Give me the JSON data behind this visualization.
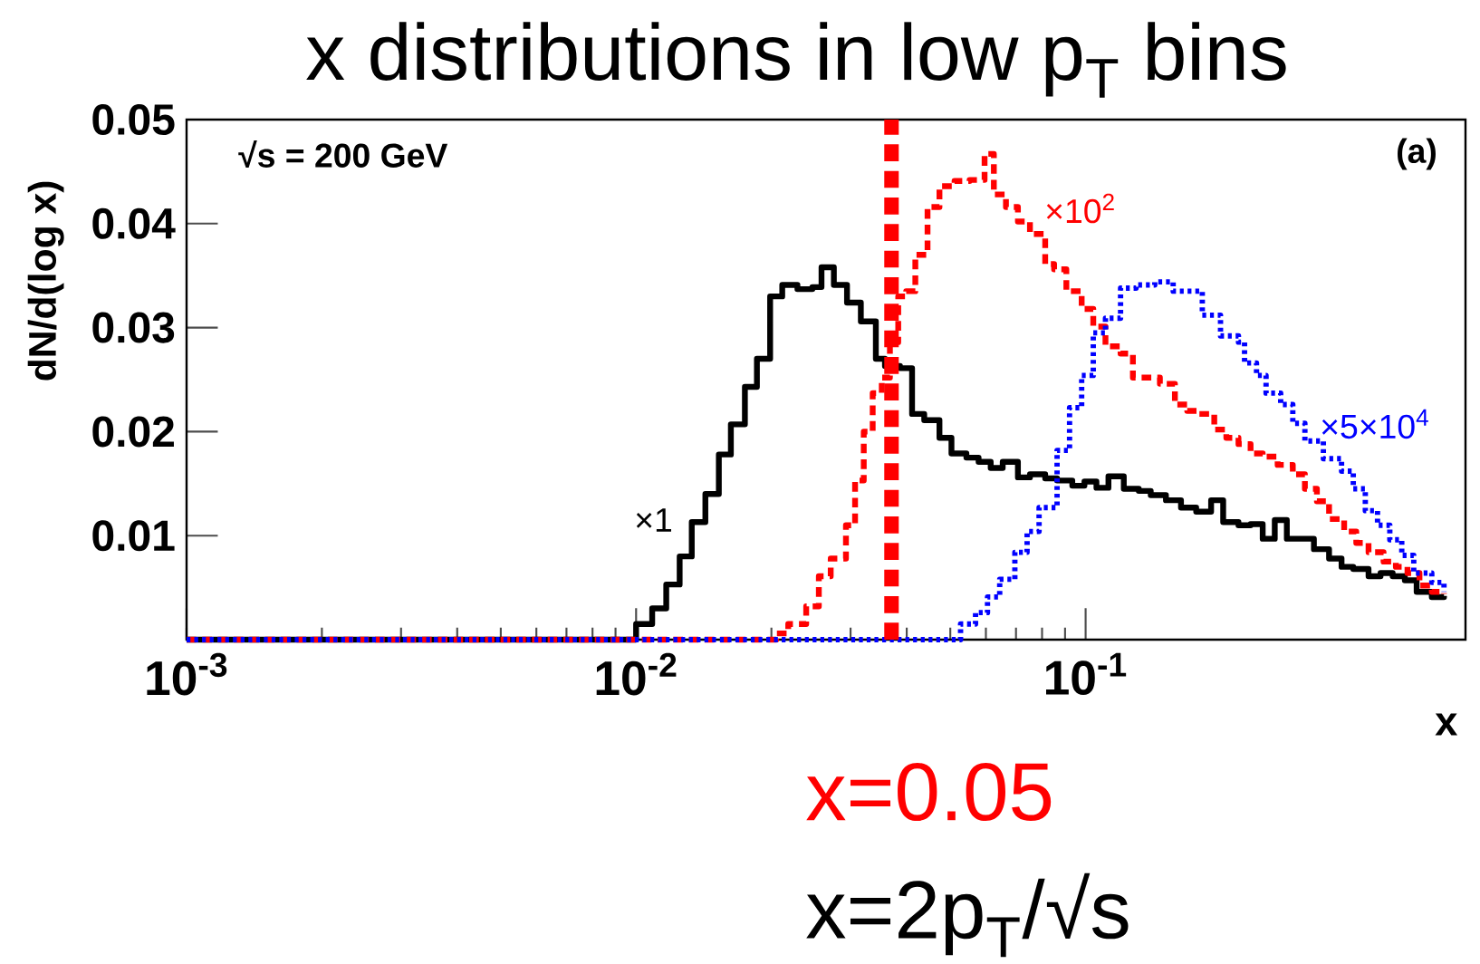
{
  "chart_data": {
    "type": "step",
    "title": "x distributions in low p$_{T}$ bins",
    "xlabel": "x",
    "ylabel": "dN/d(log x)",
    "log": "x",
    "xlim": [
      0.001,
      0.7
    ],
    "ylim": [
      0,
      0.05
    ],
    "xticks": [
      {
        "value": 0.001,
        "label": "10$^{-3}$"
      },
      {
        "value": 0.01,
        "label": "10$^{-2}$"
      },
      {
        "value": 0.1,
        "label": "10$^{-1}$"
      }
    ],
    "yticks": [
      0.01,
      0.02,
      0.03,
      0.04,
      0.05
    ],
    "grid": false,
    "legend": false,
    "marker": "none",
    "series": [
      {
        "name": "×1",
        "color": "#000000",
        "line_style": "solid",
        "x": [
          0.001,
          0.00946,
          0.01,
          0.01086,
          0.01167,
          0.0125,
          0.0133,
          0.01426,
          0.01528,
          0.01625,
          0.01746,
          0.01857,
          0.01987,
          0.02114,
          0.02285,
          0.02467,
          0.02585,
          0.02754,
          0.02946,
          0.03162,
          0.03415,
          0.03578,
          0.03865,
          0.04111,
          0.04375,
          0.0473,
          0.0503,
          0.0543,
          0.0578,
          0.0615,
          0.0654,
          0.0707,
          0.0752,
          0.0813,
          0.0864,
          0.0934,
          0.0994,
          0.1057,
          0.1124,
          0.1216,
          0.1313,
          0.1396,
          0.1509,
          0.163,
          0.1762,
          0.1902,
          0.2023,
          0.2188,
          0.2328,
          0.2477,
          0.2635,
          0.2803,
          0.2981,
          0.322,
          0.348,
          0.371,
          0.394,
          0.426,
          0.453,
          0.482,
          0.513,
          0.545,
          0.589,
          0.627
        ],
        "values": [
          0,
          0,
          0.0015,
          0.003,
          0.0053,
          0.008,
          0.0113,
          0.014,
          0.0178,
          0.0207,
          0.0243,
          0.027,
          0.033,
          0.0341,
          0.0337,
          0.0339,
          0.0358,
          0.0341,
          0.0324,
          0.0306,
          0.027,
          0.0263,
          0.0261,
          0.0217,
          0.0211,
          0.0194,
          0.0179,
          0.0175,
          0.0171,
          0.0165,
          0.0171,
          0.0156,
          0.0159,
          0.0155,
          0.0153,
          0.0148,
          0.0152,
          0.0146,
          0.0157,
          0.0145,
          0.0143,
          0.0139,
          0.0134,
          0.0127,
          0.0123,
          0.0134,
          0.0113,
          0.011,
          0.0111,
          0.0097,
          0.0115,
          0.0097,
          0.0097,
          0.0087,
          0.0078,
          0.007,
          0.0068,
          0.0061,
          0.0064,
          0.0061,
          0.0057,
          0.0046,
          0.0041,
          0.0042
        ]
      },
      {
        "name": "×10$^{2}$",
        "color": "#ff0000",
        "line_style": "dashed",
        "x": [
          0.001,
          0.0199,
          0.0205,
          0.0218,
          0.0239,
          0.0255,
          0.0271,
          0.0293,
          0.0307,
          0.0321,
          0.0336,
          0.0352,
          0.0367,
          0.0383,
          0.0399,
          0.0418,
          0.0445,
          0.0473,
          0.0511,
          0.0552,
          0.0596,
          0.0625,
          0.0665,
          0.0707,
          0.0752,
          0.0813,
          0.0851,
          0.0906,
          0.098,
          0.104,
          0.1107,
          0.1196,
          0.1274,
          0.1355,
          0.1463,
          0.158,
          0.1683,
          0.179,
          0.1933,
          0.2056,
          0.2188,
          0.2328,
          0.2477,
          0.2674,
          0.289,
          0.3075,
          0.327,
          0.348,
          0.376,
          0.4,
          0.426,
          0.46,
          0.49,
          0.52,
          0.553,
          0.589,
          0.627
        ],
        "values": [
          0,
          0,
          0.0006,
          0.0015,
          0.0032,
          0.0061,
          0.0078,
          0.011,
          0.0153,
          0.02,
          0.0237,
          0.0252,
          0.0286,
          0.033,
          0.0335,
          0.037,
          0.0416,
          0.0436,
          0.0441,
          0.0442,
          0.0467,
          0.0428,
          0.0416,
          0.0402,
          0.039,
          0.0361,
          0.0356,
          0.0335,
          0.0318,
          0.0301,
          0.0282,
          0.0275,
          0.0252,
          0.0252,
          0.0246,
          0.0226,
          0.022,
          0.0217,
          0.0202,
          0.0194,
          0.0188,
          0.0179,
          0.0176,
          0.0168,
          0.0159,
          0.0145,
          0.0133,
          0.0116,
          0.0104,
          0.0093,
          0.0084,
          0.0075,
          0.007,
          0.0064,
          0.0052,
          0.0046,
          0.0044
        ]
      },
      {
        "name": "×5×10$^{4}$",
        "color": "#0000ff",
        "line_style": "dotted",
        "x": [
          0.001,
          0.0487,
          0.0527,
          0.0569,
          0.0605,
          0.0644,
          0.0696,
          0.0741,
          0.0788,
          0.0864,
          0.0921,
          0.098,
          0.104,
          0.1107,
          0.1196,
          0.1295,
          0.1425,
          0.1566,
          0.1762,
          0.1818,
          0.1996,
          0.2188,
          0.2257,
          0.24,
          0.252,
          0.2716,
          0.289,
          0.3075,
          0.338,
          0.371,
          0.394,
          0.419,
          0.446,
          0.475,
          0.505,
          0.537,
          0.589,
          0.627
        ],
        "values": [
          0,
          0,
          0.0015,
          0.0026,
          0.0041,
          0.0058,
          0.0084,
          0.0104,
          0.0127,
          0.0182,
          0.0223,
          0.0254,
          0.0295,
          0.0309,
          0.0338,
          0.0341,
          0.0344,
          0.0335,
          0.0335,
          0.0312,
          0.0292,
          0.0286,
          0.0266,
          0.0254,
          0.0237,
          0.0226,
          0.0208,
          0.0191,
          0.0174,
          0.0162,
          0.0145,
          0.0124,
          0.011,
          0.0096,
          0.0081,
          0.0064,
          0.0055,
          0.0046
        ]
      }
    ],
    "ref_lines": [
      {
        "axis": "x",
        "value": 0.037,
        "color": "#ff0000",
        "line_style": "dashed"
      }
    ],
    "annotations": [
      "√s = 200 GeV",
      "(a)",
      "x=0.05",
      "x=2p$_{T}$/√s"
    ]
  }
}
